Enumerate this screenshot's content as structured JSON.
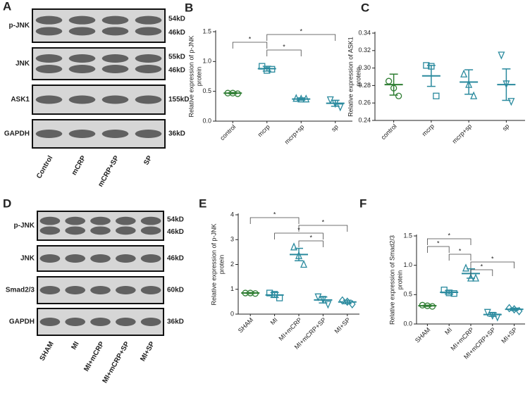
{
  "panel_letters": [
    "A",
    "B",
    "C",
    "D",
    "E",
    "F"
  ],
  "blots": [
    {
      "rows": [
        {
          "label": "p-JNK",
          "sizes": [
            "54kD",
            "46kD"
          ]
        },
        {
          "label": "JNK",
          "sizes": [
            "55kD",
            "46kD"
          ]
        },
        {
          "label": "ASK1",
          "sizes": [
            "155kD"
          ]
        },
        {
          "label": "GAPDH",
          "sizes": [
            "36kD"
          ]
        }
      ],
      "lanes": [
        "Control",
        "mCRP",
        "mCRP+SP",
        "SP"
      ]
    },
    {
      "rows": [
        {
          "label": "p-JNK",
          "sizes": [
            "54kD",
            "46kD"
          ]
        },
        {
          "label": "JNK",
          "sizes": [
            "46kD"
          ]
        },
        {
          "label": "Smad2/3",
          "sizes": [
            "60kD"
          ]
        },
        {
          "label": "GAPDH",
          "sizes": [
            "36kD"
          ]
        }
      ],
      "lanes": [
        "SHAM",
        "MI",
        "MI+mCRP",
        "MI+mCRP+SP",
        "MI+SP"
      ]
    }
  ],
  "chart_data": [
    {
      "type": "dot",
      "ylabel": [
        "Relative expression of  p-JNK",
        "protein"
      ],
      "categories": [
        "control",
        "mcrp",
        "mcrp+sp",
        "sp"
      ],
      "colors": [
        "#2e7d32",
        "#2a8a9e",
        "#2a8a9e",
        "#2a8a9e"
      ],
      "markers": [
        "circle",
        "square",
        "triangle-up",
        "triangle-down"
      ],
      "points": [
        [
          0.47,
          0.47,
          0.46
        ],
        [
          0.92,
          0.85,
          0.87
        ],
        [
          0.38,
          0.37,
          0.37
        ],
        [
          0.36,
          0.3,
          0.24
        ]
      ],
      "means": [
        0.47,
        0.88,
        0.37,
        0.3
      ],
      "errors": [
        0.01,
        0.04,
        0.02,
        0.05
      ],
      "ylim": [
        0,
        1.5
      ],
      "yticks": [
        {
          "value": 0,
          "label": "0.0"
        },
        {
          "value": 0.5,
          "label": "0.5"
        },
        {
          "value": 1,
          "label": "1.0"
        },
        {
          "value": 1.5,
          "label": "1.5"
        }
      ],
      "comparisons": [
        {
          "between": [
            1,
            3
          ],
          "label": "*"
        },
        {
          "between": [
            0,
            1
          ],
          "label": "*"
        },
        {
          "between": [
            1,
            2
          ],
          "label": "*"
        }
      ]
    },
    {
      "type": "dot",
      "ylabel": [
        "Relative expression of ASK1",
        "protein"
      ],
      "categories": [
        "control",
        "mcrp",
        "mcrp+sp",
        "sp"
      ],
      "colors": [
        "#2e7d32",
        "#2a8a9e",
        "#2a8a9e",
        "#2a8a9e"
      ],
      "markers": [
        "circle",
        "square",
        "triangle-up",
        "triangle-down"
      ],
      "points": [
        [
          0.285,
          0.277,
          0.268
        ],
        [
          0.303,
          0.302,
          0.268
        ],
        [
          0.293,
          0.281,
          0.268
        ],
        [
          0.315,
          0.282,
          0.262
        ]
      ],
      "means": [
        0.281,
        0.291,
        0.284,
        0.281
      ],
      "errors": [
        0.012,
        0.012,
        0.014,
        0.018
      ],
      "ylim": [
        0.24,
        0.34
      ],
      "yticks": [
        0.24,
        0.26,
        0.28,
        {
          "value": 0.3,
          "label": "0.30"
        },
        0.32,
        0.34
      ],
      "comparisons": []
    },
    {
      "type": "dot",
      "ylabel": [
        "Relative expression of  p-JNK",
        "protein"
      ],
      "categories": [
        "SHAM",
        "MI",
        "MI+mCRP",
        "MI+mCRP+SP",
        "MI+SP"
      ],
      "colors": [
        "#2e7d32",
        "#2a8a9e",
        "#2a8a9e",
        "#2a8a9e",
        "#2a8a9e"
      ],
      "markers": [
        "circle",
        "square",
        "triangle-up",
        "triangle-down",
        "diamond"
      ],
      "points": [
        [
          0.85,
          0.85,
          0.83
        ],
        [
          0.85,
          0.8,
          0.65
        ],
        [
          2.7,
          2.35,
          2.0
        ],
        [
          0.7,
          0.6,
          0.4
        ],
        [
          0.55,
          0.5,
          0.4
        ]
      ],
      "means": [
        0.85,
        0.77,
        2.4,
        0.57,
        0.49
      ],
      "errors": [
        0.02,
        0.1,
        0.25,
        0.12,
        0.07
      ],
      "ylim": [
        0,
        4
      ],
      "yticks": [
        0,
        1,
        2,
        3,
        4
      ],
      "comparisons": [
        {
          "between": [
            0,
            2
          ],
          "label": "*"
        },
        {
          "between": [
            2,
            4
          ],
          "label": "*"
        },
        {
          "between": [
            1,
            3
          ],
          "label": "*"
        },
        {
          "between": [
            2,
            3
          ],
          "label": "*"
        }
      ]
    },
    {
      "type": "dot",
      "ylabel": [
        "Relative expression of  Smad2/3",
        "protein"
      ],
      "categories": [
        "SHAM",
        "MI",
        "MI+mCRP",
        "MI+mCRP+SP",
        "MI+SP"
      ],
      "colors": [
        "#2e7d32",
        "#2a8a9e",
        "#2a8a9e",
        "#2a8a9e",
        "#2a8a9e"
      ],
      "markers": [
        "circle",
        "square",
        "triangle-up",
        "triangle-down",
        "diamond"
      ],
      "points": [
        [
          0.32,
          0.31,
          0.3
        ],
        [
          0.58,
          0.53,
          0.52
        ],
        [
          0.95,
          0.78,
          0.78
        ],
        [
          0.2,
          0.15,
          0.12
        ],
        [
          0.27,
          0.25,
          0.22
        ]
      ],
      "means": [
        0.31,
        0.54,
        0.86,
        0.16,
        0.25
      ],
      "errors": [
        0.01,
        0.03,
        0.08,
        0.03,
        0.02
      ],
      "ylim": [
        0,
        1.5
      ],
      "yticks": [
        {
          "value": 0,
          "label": "0.0"
        },
        {
          "value": 0.5,
          "label": "0.5"
        },
        {
          "value": 1,
          "label": "1.0"
        },
        {
          "value": 1.5,
          "label": "1.5"
        }
      ],
      "comparisons": [
        {
          "between": [
            0,
            2
          ],
          "label": "*"
        },
        {
          "between": [
            0,
            1
          ],
          "label": "*"
        },
        {
          "between": [
            1,
            2
          ],
          "label": "*"
        },
        {
          "between": [
            2,
            4
          ],
          "label": "*"
        },
        {
          "between": [
            2,
            3
          ],
          "label": "*"
        }
      ]
    }
  ]
}
